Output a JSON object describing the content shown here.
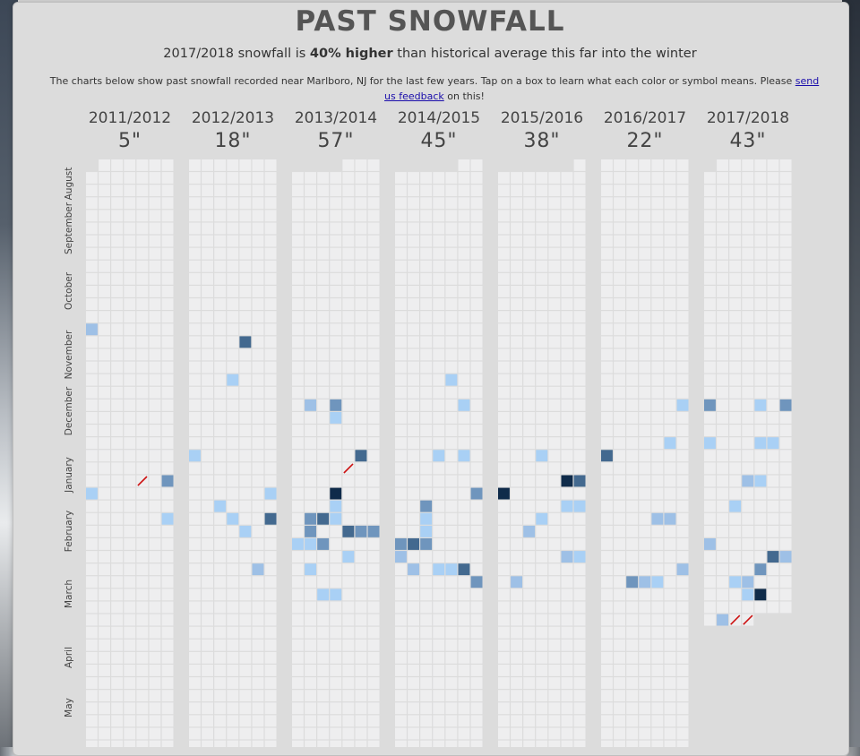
{
  "header": {
    "title": "PAST SNOWFALL",
    "summary_prefix": "2017/2018 snowfall is ",
    "summary_bold": "40% higher",
    "summary_suffix": " than historical average this far into the winter",
    "note_text": "The charts below show past snowfall recorded near Marlboro, NJ for the last few years. Tap on a box to learn what each color or symbol means. Please ",
    "note_link": "send us feedback",
    "note_suffix": " on this!"
  },
  "months": [
    "August",
    "September",
    "October",
    "November",
    "December",
    "January",
    "February",
    "March",
    "April",
    "May"
  ],
  "colors": {
    "empty": "#eeeeef",
    "light": "#a9d0f5",
    "pale": "#9ec0e6",
    "mid": "#6f95bd",
    "dark": "#43698f",
    "darkest": "#0f2b4a",
    "trace": "#cc1111",
    "card": "#dcdcdc"
  },
  "chart_data": {
    "type": "heatmap",
    "title": "PAST SNOWFALL",
    "x_unit": "day of week column",
    "y_unit": "week row starting August",
    "seasons": [
      {
        "label": "2011/2012",
        "total": "5\"",
        "start_offset": 1,
        "cells": [
          [
            13,
            0,
            "pale"
          ],
          [
            25,
            4,
            "trace"
          ],
          [
            25,
            6,
            "mid"
          ],
          [
            26,
            0,
            "light"
          ],
          [
            28,
            6,
            "light"
          ]
        ]
      },
      {
        "label": "2012/2013",
        "total": "18\"",
        "start_offset": 0,
        "cells": [
          [
            14,
            4,
            "dark"
          ],
          [
            17,
            3,
            "light"
          ],
          [
            23,
            0,
            "light"
          ],
          [
            26,
            6,
            "light"
          ],
          [
            27,
            2,
            "light"
          ],
          [
            28,
            3,
            "light"
          ],
          [
            28,
            6,
            "dark"
          ],
          [
            29,
            4,
            "light"
          ],
          [
            32,
            5,
            "pale"
          ]
        ]
      },
      {
        "label": "2013/2014",
        "total": "57\"",
        "start_offset": 4,
        "cells": [
          [
            19,
            1,
            "pale"
          ],
          [
            19,
            3,
            "mid"
          ],
          [
            20,
            3,
            "light"
          ],
          [
            23,
            5,
            "dark"
          ],
          [
            24,
            4,
            "trace"
          ],
          [
            26,
            3,
            "darkest"
          ],
          [
            27,
            3,
            "light"
          ],
          [
            28,
            1,
            "mid"
          ],
          [
            28,
            2,
            "dark"
          ],
          [
            28,
            3,
            "light"
          ],
          [
            29,
            1,
            "mid"
          ],
          [
            29,
            4,
            "dark"
          ],
          [
            29,
            5,
            "mid"
          ],
          [
            29,
            6,
            "mid"
          ],
          [
            30,
            0,
            "light"
          ],
          [
            30,
            1,
            "light"
          ],
          [
            30,
            2,
            "mid"
          ],
          [
            31,
            4,
            "light"
          ],
          [
            32,
            1,
            "light"
          ],
          [
            34,
            2,
            "light"
          ],
          [
            34,
            3,
            "light"
          ]
        ]
      },
      {
        "label": "2014/2015",
        "total": "45\"",
        "start_offset": 5,
        "cells": [
          [
            17,
            4,
            "light"
          ],
          [
            19,
            5,
            "light"
          ],
          [
            23,
            3,
            "light"
          ],
          [
            23,
            5,
            "light"
          ],
          [
            26,
            6,
            "mid"
          ],
          [
            27,
            2,
            "mid"
          ],
          [
            28,
            2,
            "light"
          ],
          [
            29,
            2,
            "light"
          ],
          [
            30,
            0,
            "mid"
          ],
          [
            30,
            1,
            "dark"
          ],
          [
            30,
            2,
            "mid"
          ],
          [
            31,
            0,
            "pale"
          ],
          [
            32,
            1,
            "pale"
          ],
          [
            32,
            3,
            "light"
          ],
          [
            32,
            4,
            "light"
          ],
          [
            32,
            5,
            "dark"
          ],
          [
            33,
            6,
            "mid"
          ]
        ]
      },
      {
        "label": "2015/2016",
        "total": "38\"",
        "start_offset": 6,
        "cells": [
          [
            23,
            3,
            "light"
          ],
          [
            25,
            5,
            "darkest"
          ],
          [
            25,
            6,
            "dark"
          ],
          [
            26,
            0,
            "darkest"
          ],
          [
            27,
            5,
            "light"
          ],
          [
            27,
            6,
            "light"
          ],
          [
            28,
            3,
            "light"
          ],
          [
            29,
            2,
            "pale"
          ],
          [
            31,
            5,
            "pale"
          ],
          [
            31,
            6,
            "light"
          ],
          [
            33,
            1,
            "pale"
          ]
        ]
      },
      {
        "label": "2016/2017",
        "total": "22\"",
        "start_offset": 0,
        "cells": [
          [
            19,
            6,
            "light"
          ],
          [
            22,
            5,
            "light"
          ],
          [
            23,
            0,
            "dark"
          ],
          [
            28,
            4,
            "pale"
          ],
          [
            28,
            5,
            "pale"
          ],
          [
            32,
            6,
            "pale"
          ],
          [
            33,
            2,
            "mid"
          ],
          [
            33,
            3,
            "pale"
          ],
          [
            33,
            4,
            "light"
          ]
        ]
      },
      {
        "label": "2017/2018",
        "total": "43\"",
        "start_offset": 1,
        "cells": [
          [
            19,
            0,
            "mid"
          ],
          [
            19,
            4,
            "light"
          ],
          [
            19,
            6,
            "mid"
          ],
          [
            22,
            0,
            "light"
          ],
          [
            22,
            4,
            "light"
          ],
          [
            22,
            5,
            "light"
          ],
          [
            25,
            3,
            "pale"
          ],
          [
            25,
            4,
            "light"
          ],
          [
            27,
            2,
            "light"
          ],
          [
            30,
            0,
            "pale"
          ],
          [
            31,
            5,
            "dark"
          ],
          [
            31,
            6,
            "pale"
          ],
          [
            32,
            4,
            "mid"
          ],
          [
            33,
            2,
            "light"
          ],
          [
            33,
            3,
            "pale"
          ],
          [
            34,
            3,
            "light"
          ],
          [
            34,
            4,
            "darkest"
          ],
          [
            36,
            1,
            "pale"
          ],
          [
            36,
            2,
            "trace"
          ],
          [
            36,
            3,
            "trace"
          ]
        ],
        "last_week_row": 36,
        "last_day": 3
      }
    ]
  }
}
